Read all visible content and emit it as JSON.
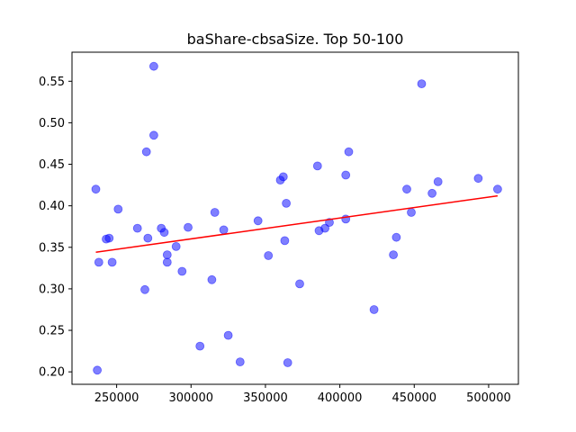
{
  "chart_data": {
    "type": "scatter",
    "title": "baShare-cbsaSize. Top 50-100",
    "xlabel": "",
    "ylabel": "",
    "xlim": [
      220000,
      520000
    ],
    "ylim": [
      0.185,
      0.585
    ],
    "xticks": [
      250000,
      300000,
      350000,
      400000,
      450000,
      500000
    ],
    "yticks": [
      0.2,
      0.25,
      0.3,
      0.35,
      0.4,
      0.45,
      0.5,
      0.55
    ],
    "xtick_labels": [
      "250000",
      "300000",
      "350000",
      "400000",
      "450000",
      "500000"
    ],
    "ytick_labels": [
      "0.20",
      "0.25",
      "0.30",
      "0.35",
      "0.40",
      "0.45",
      "0.50",
      "0.55"
    ],
    "grid": false,
    "point_color": "#0000ff",
    "line_color": "#ff0000",
    "points": [
      {
        "x": 236000,
        "y": 0.42
      },
      {
        "x": 237000,
        "y": 0.202
      },
      {
        "x": 238000,
        "y": 0.332
      },
      {
        "x": 243000,
        "y": 0.36
      },
      {
        "x": 245000,
        "y": 0.361
      },
      {
        "x": 247000,
        "y": 0.332
      },
      {
        "x": 251000,
        "y": 0.396
      },
      {
        "x": 264000,
        "y": 0.373
      },
      {
        "x": 269000,
        "y": 0.299
      },
      {
        "x": 270000,
        "y": 0.465
      },
      {
        "x": 271000,
        "y": 0.361
      },
      {
        "x": 275000,
        "y": 0.568
      },
      {
        "x": 275000,
        "y": 0.485
      },
      {
        "x": 280000,
        "y": 0.373
      },
      {
        "x": 282000,
        "y": 0.368
      },
      {
        "x": 284000,
        "y": 0.341
      },
      {
        "x": 284000,
        "y": 0.332
      },
      {
        "x": 290000,
        "y": 0.351
      },
      {
        "x": 294000,
        "y": 0.321
      },
      {
        "x": 298000,
        "y": 0.374
      },
      {
        "x": 306000,
        "y": 0.231
      },
      {
        "x": 314000,
        "y": 0.311
      },
      {
        "x": 316000,
        "y": 0.392
      },
      {
        "x": 322000,
        "y": 0.371
      },
      {
        "x": 325000,
        "y": 0.244
      },
      {
        "x": 333000,
        "y": 0.212
      },
      {
        "x": 345000,
        "y": 0.382
      },
      {
        "x": 352000,
        "y": 0.34
      },
      {
        "x": 360000,
        "y": 0.431
      },
      {
        "x": 362000,
        "y": 0.435
      },
      {
        "x": 363000,
        "y": 0.358
      },
      {
        "x": 364000,
        "y": 0.403
      },
      {
        "x": 365000,
        "y": 0.211
      },
      {
        "x": 373000,
        "y": 0.306
      },
      {
        "x": 385000,
        "y": 0.448
      },
      {
        "x": 386000,
        "y": 0.37
      },
      {
        "x": 390000,
        "y": 0.373
      },
      {
        "x": 393000,
        "y": 0.38
      },
      {
        "x": 404000,
        "y": 0.384
      },
      {
        "x": 404000,
        "y": 0.437
      },
      {
        "x": 406000,
        "y": 0.465
      },
      {
        "x": 423000,
        "y": 0.275
      },
      {
        "x": 436000,
        "y": 0.341
      },
      {
        "x": 438000,
        "y": 0.362
      },
      {
        "x": 445000,
        "y": 0.42
      },
      {
        "x": 448000,
        "y": 0.392
      },
      {
        "x": 455000,
        "y": 0.547
      },
      {
        "x": 462000,
        "y": 0.415
      },
      {
        "x": 466000,
        "y": 0.429
      },
      {
        "x": 493000,
        "y": 0.433
      },
      {
        "x": 506000,
        "y": 0.42
      }
    ],
    "trend_line": {
      "x": [
        236000,
        506000
      ],
      "y": [
        0.344,
        0.412
      ]
    }
  }
}
